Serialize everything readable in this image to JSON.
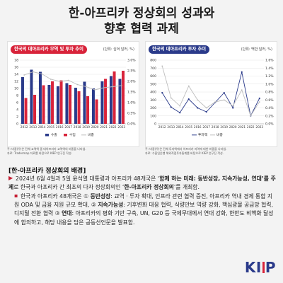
{
  "page_title": [
    "한-아프리카 정상회의 성과와",
    "향후 협력 과제"
  ],
  "chart_data": [
    {
      "type": "bar",
      "title": "한국의 대아프리카 무역 및 투자 추이",
      "unit": "(단위: 십억 달러, %)",
      "categories": [
        "2012",
        "2013",
        "2014",
        "2015",
        "2016",
        "2017",
        "2018",
        "2019",
        "2020",
        "2021",
        "2022",
        "2023"
      ],
      "series": [
        {
          "name": "수출",
          "kind": "bar",
          "axis": "left",
          "color": "#2a3a8a",
          "values": [
            13.2,
            15.3,
            14.7,
            11.0,
            10.6,
            11.5,
            10.2,
            11.9,
            10.0,
            12.0,
            13.5,
            12.7
          ]
        },
        {
          "name": "수입",
          "kind": "bar",
          "axis": "left",
          "color": "#d8233a",
          "values": [
            7.3,
            8.2,
            10.9,
            12.0,
            12.3,
            11.0,
            9.2,
            7.8,
            6.9,
            12.7,
            14.8,
            15.0
          ]
        },
        {
          "name": "비중",
          "kind": "line",
          "axis": "right",
          "color": "#bdbdbd",
          "values": [
            2.3,
            2.45,
            2.35,
            2.1,
            2.0,
            2.05,
            1.85,
            1.75,
            1.6,
            1.7,
            1.75,
            1.8
          ]
        }
      ],
      "ylim": [
        0,
        18
      ],
      "yticks": [
        0,
        2,
        4,
        6,
        8,
        10,
        12,
        14,
        16,
        18
      ],
      "ylim_right": [
        0,
        3
      ],
      "yticks_right": [
        "0.0%",
        "0.5%",
        "1.0%",
        "1.5%",
        "2.0%",
        "2.5%",
        "3.0%"
      ],
      "legend_position": "bottom",
      "legend": [
        "수출",
        "수입",
        "비중"
      ],
      "source": [
        "주: 비중(우)은 전체 교역액 중 대아프리카 교역액의 비중을 나타냄.",
        "자료: Tradermap 자료를 바탕으로 KIEP 연구진 작성."
      ]
    },
    {
      "type": "line",
      "title": "한국의 대아프리카 투자 추이",
      "unit": "(단위: 백만 달러, %)",
      "categories": [
        "2012",
        "2013",
        "2014",
        "2015",
        "2016",
        "2017",
        "2018",
        "2019",
        "2020",
        "2021",
        "2022",
        "2023"
      ],
      "series": [
        {
          "name": "투자액",
          "kind": "line",
          "axis": "left",
          "color": "#2a3a8a",
          "values": [
            390,
            210,
            140,
            310,
            200,
            150,
            270,
            390,
            200,
            650,
            100,
            320
          ]
        },
        {
          "name": "비중",
          "kind": "line",
          "axis": "right",
          "color": "#bdbdbd",
          "values": [
            1.45,
            0.65,
            0.45,
            0.95,
            0.6,
            0.4,
            0.55,
            0.6,
            0.45,
            0.85,
            0.2,
            0.55
          ]
        }
      ],
      "ylim": [
        0,
        800
      ],
      "yticks": [
        0,
        100,
        200,
        300,
        400,
        500,
        600,
        700,
        800
      ],
      "ylim_right": [
        0,
        1.6
      ],
      "yticks_right": [
        "0.0%",
        "0.2%",
        "0.4%",
        "0.6%",
        "0.8%",
        "1.0%",
        "1.2%",
        "1.4%",
        "1.6%"
      ],
      "legend_position": "bottom",
      "legend": [
        "투자액",
        "비중"
      ],
      "source": [
        "주: 비중(우)은 전체 투자액에서 아프리카 지역에 대한 비중을 나타냄.",
        "자료: 수출입은행 해외직접투자통계를 바탕으로 KIEP 연구진 작성."
      ]
    }
  ],
  "section": {
    "title": "[한-아프리카 정상회의 배경]",
    "p1": [
      {
        "t": "2024년 6월 4일과 5일 윤석열 대통령과 아프리카 48개국은 ‘",
        "b": false
      },
      {
        "t": "함께 하는 미래: 동반성장, 지속가능성, 연대’를 주제",
        "b": true
      },
      {
        "t": "로 한국과 아프리카 간 최초의 다자 정상회의인 ‘",
        "b": false
      },
      {
        "t": "한-아프리카 정상회의",
        "b": true
      },
      {
        "t": "’를 개최함.",
        "b": false
      }
    ],
    "p2": [
      {
        "t": "한국과 아프리카 48개국은 ① ",
        "b": false
      },
      {
        "t": "동반성장",
        "b": true
      },
      {
        "t": ": 교역 · 투자 확대, 인프라 관련 협력 증진, 아프리카 역내 경제 통합 지원 ODA 및 금융 지원 규모 확대, ② ",
        "b": false
      },
      {
        "t": "지속가능성",
        "b": true
      },
      {
        "t": ": 기후변화 대응 협력, 식량안보 역량 강화, 핵심광물 공급망 협력, 디지털 전환 협력 ③ ",
        "b": false
      },
      {
        "t": "연대",
        "b": true
      },
      {
        "t": ": 아프리카의 평화 기반 구축, UN, G20 등 국제무대에서 연대 강화, 한반도 비핵화 달성에 합의하고, 해당 내용을 담은 공동선언문을 발표함.",
        "b": false
      }
    ]
  },
  "logo": {
    "text": "KIEP"
  }
}
